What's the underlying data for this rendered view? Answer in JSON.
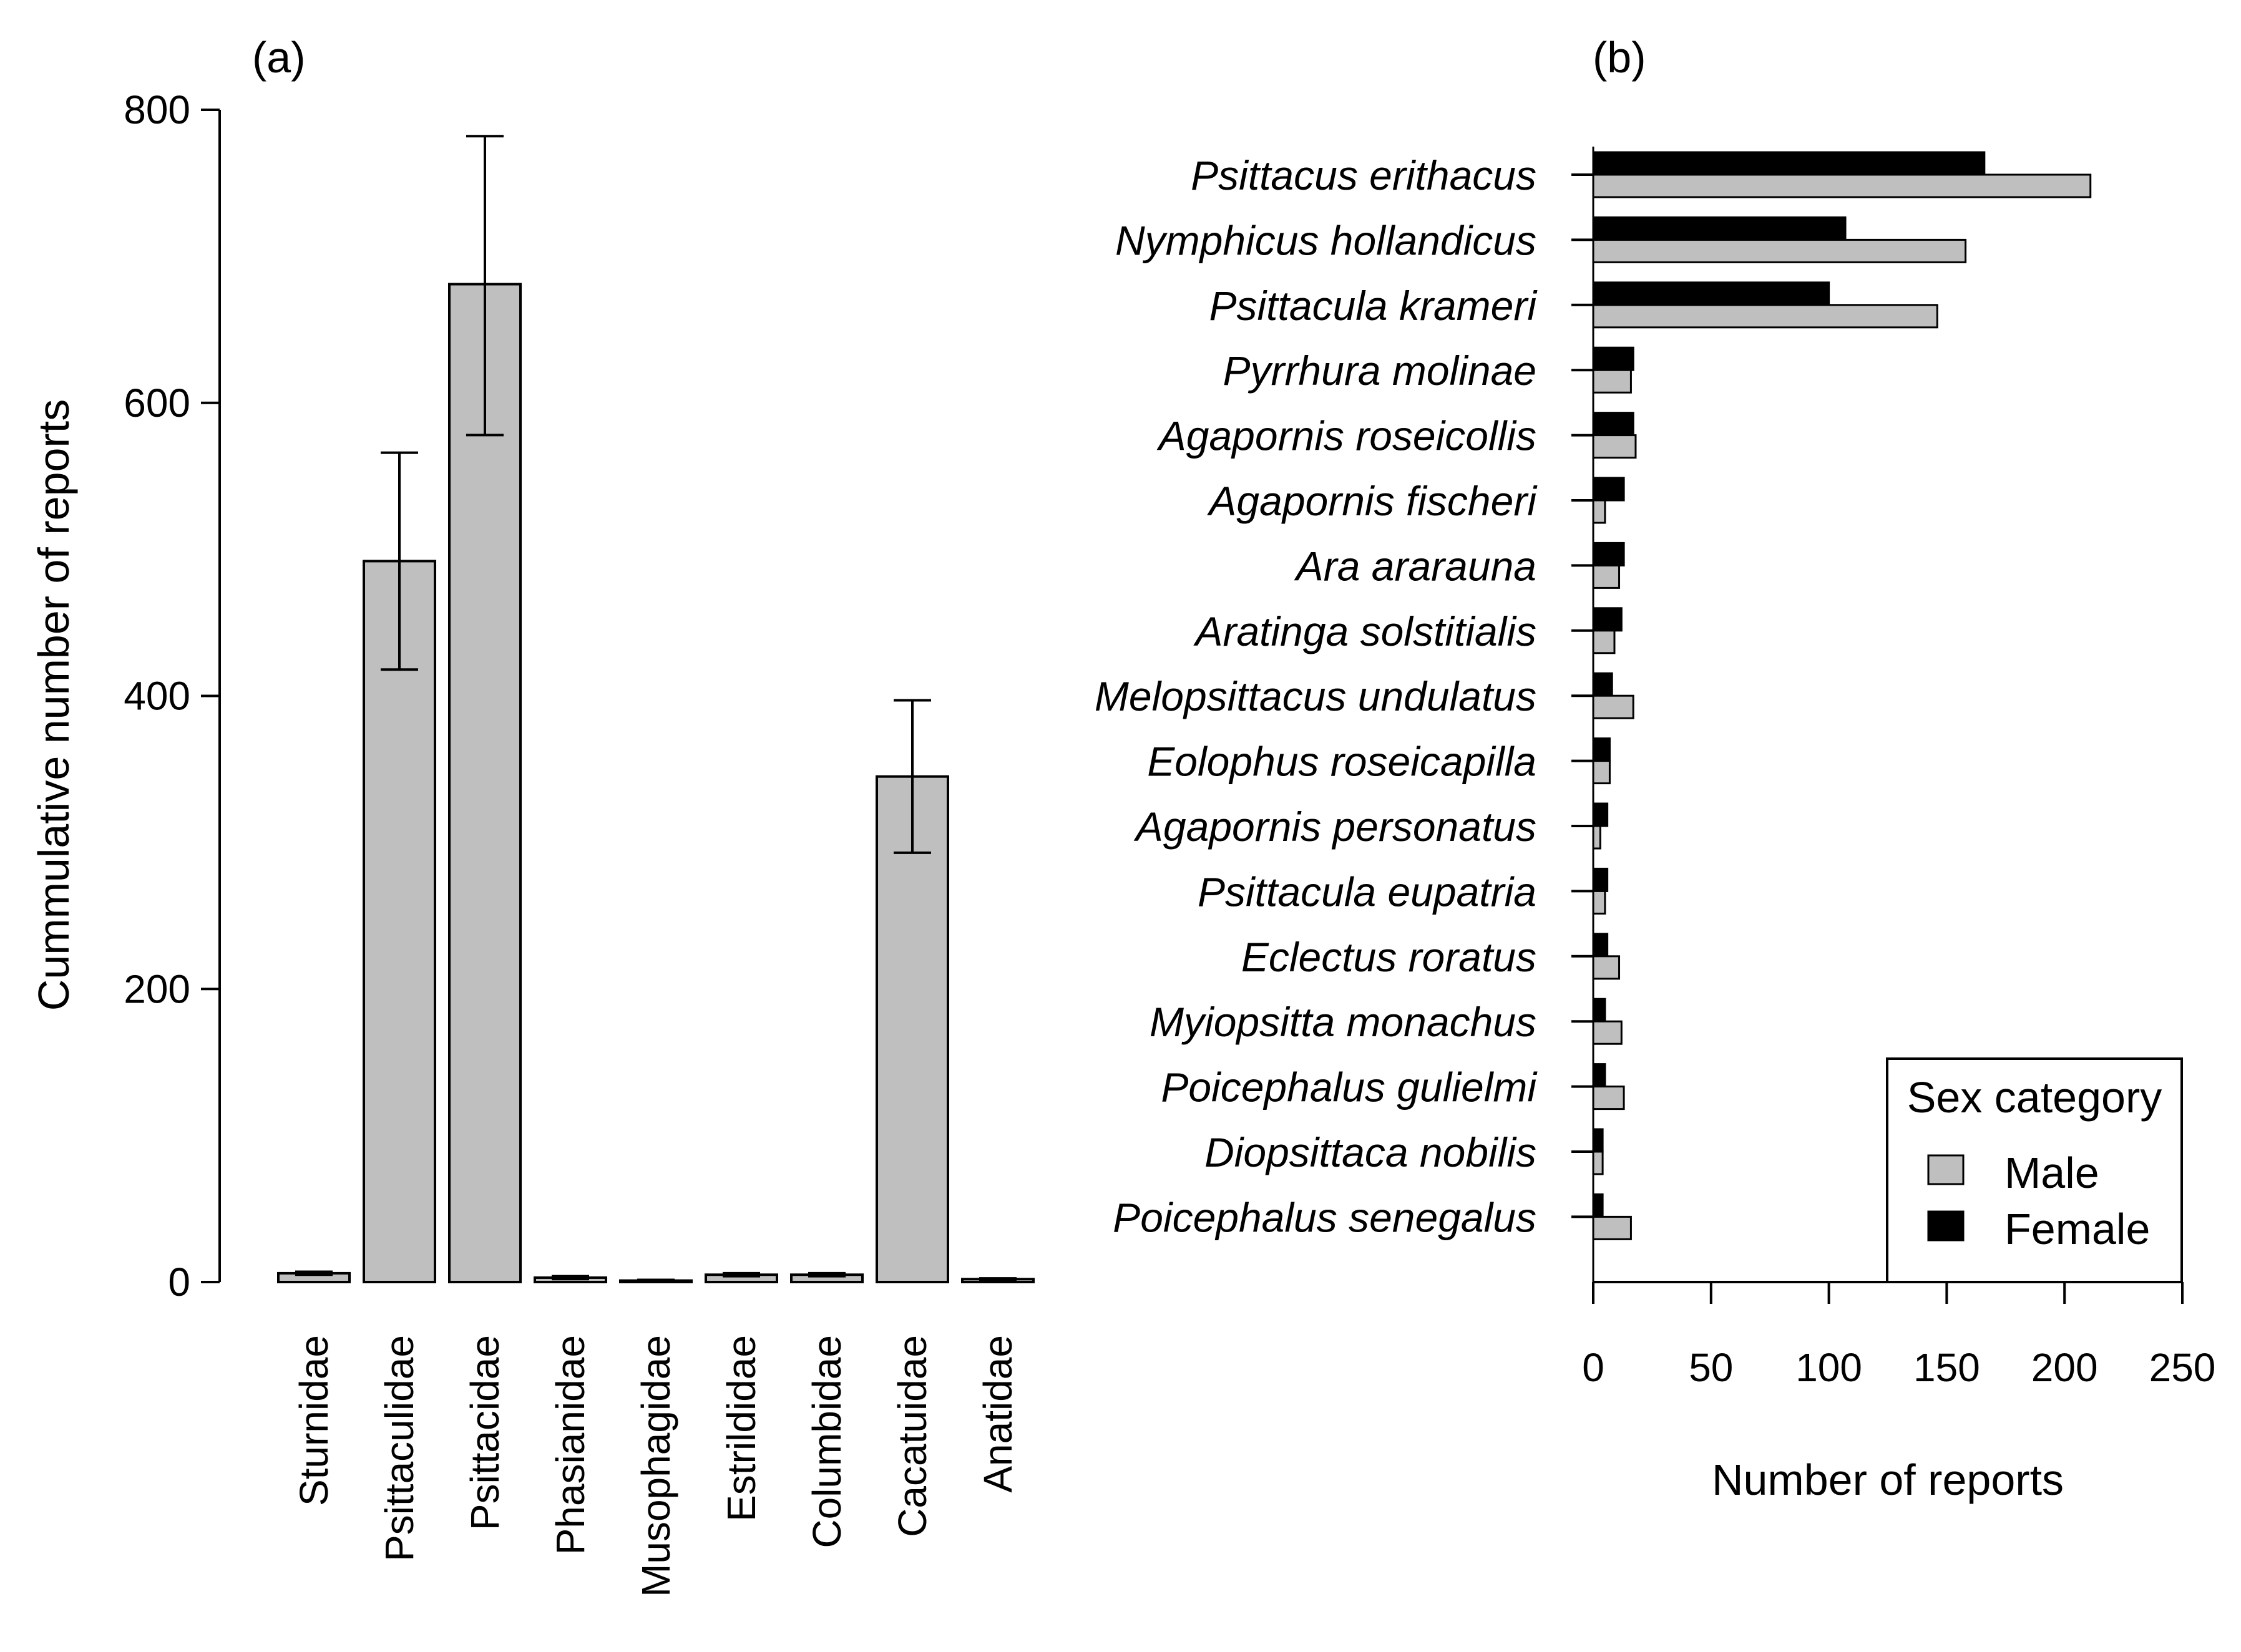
{
  "chart_data": [
    {
      "panel": "(a)",
      "type": "bar",
      "title": "",
      "xlabel": "",
      "ylabel": "Cummulative number of reports",
      "ylim": [
        0,
        800
      ],
      "yticks": [
        "0",
        "200",
        "400",
        "600",
        "800"
      ],
      "categories": [
        "Sturnidae",
        "Psittaculidae",
        "Psittacidae",
        "Phasianidae",
        "Musophagidae",
        "Estrildidae",
        "Columbidae",
        "Cacatuidae",
        "Anatidae"
      ],
      "values": [
        6,
        492,
        681,
        3,
        1,
        5,
        5,
        345,
        2
      ],
      "error_low": [
        5,
        418,
        578,
        2,
        0.5,
        4,
        4,
        293,
        1.5
      ],
      "error_high": [
        7,
        566,
        782,
        4,
        1.5,
        6,
        6,
        397,
        2.5
      ],
      "bar_color": "#bfbfbf",
      "edge_color": "#000000"
    },
    {
      "panel": "(b)",
      "type": "bar",
      "orientation": "horizontal",
      "title": "",
      "xlabel": "Number of reports",
      "ylabel": "",
      "xlim": [
        0,
        250
      ],
      "xticks": [
        "0",
        "50",
        "100",
        "150",
        "200",
        "250"
      ],
      "categories": [
        "Psittacus erithacus",
        "Nymphicus hollandicus",
        "Psittacula krameri",
        "Pyrrhura molinae",
        "Agapornis roseicollis",
        "Agapornis fischeri",
        "Ara ararauna",
        "Aratinga solstitialis",
        "Melopsittacus undulatus",
        "Eolophus roseicapilla",
        "Agapornis personatus",
        "Psittacula eupatria",
        "Eclectus roratus",
        "Myiopsitta monachus",
        "Poicephalus gulielmi",
        "Diopsittaca nobilis",
        "Poicephalus senegalus"
      ],
      "series": [
        {
          "name": "Female",
          "color": "#000000",
          "values": [
            166,
            107,
            100,
            17,
            17,
            13,
            13,
            12,
            8,
            7,
            6,
            6,
            6,
            5,
            5,
            4,
            4
          ]
        },
        {
          "name": "Male",
          "color": "#bfbfbf",
          "values": [
            211,
            158,
            146,
            16,
            18,
            5,
            11,
            9,
            17,
            7,
            3,
            5,
            11,
            12,
            13,
            4,
            16
          ]
        }
      ],
      "legend": {
        "title": "Sex category",
        "entries": [
          "Male",
          "Female"
        ],
        "placement": "bottom-right"
      }
    }
  ]
}
